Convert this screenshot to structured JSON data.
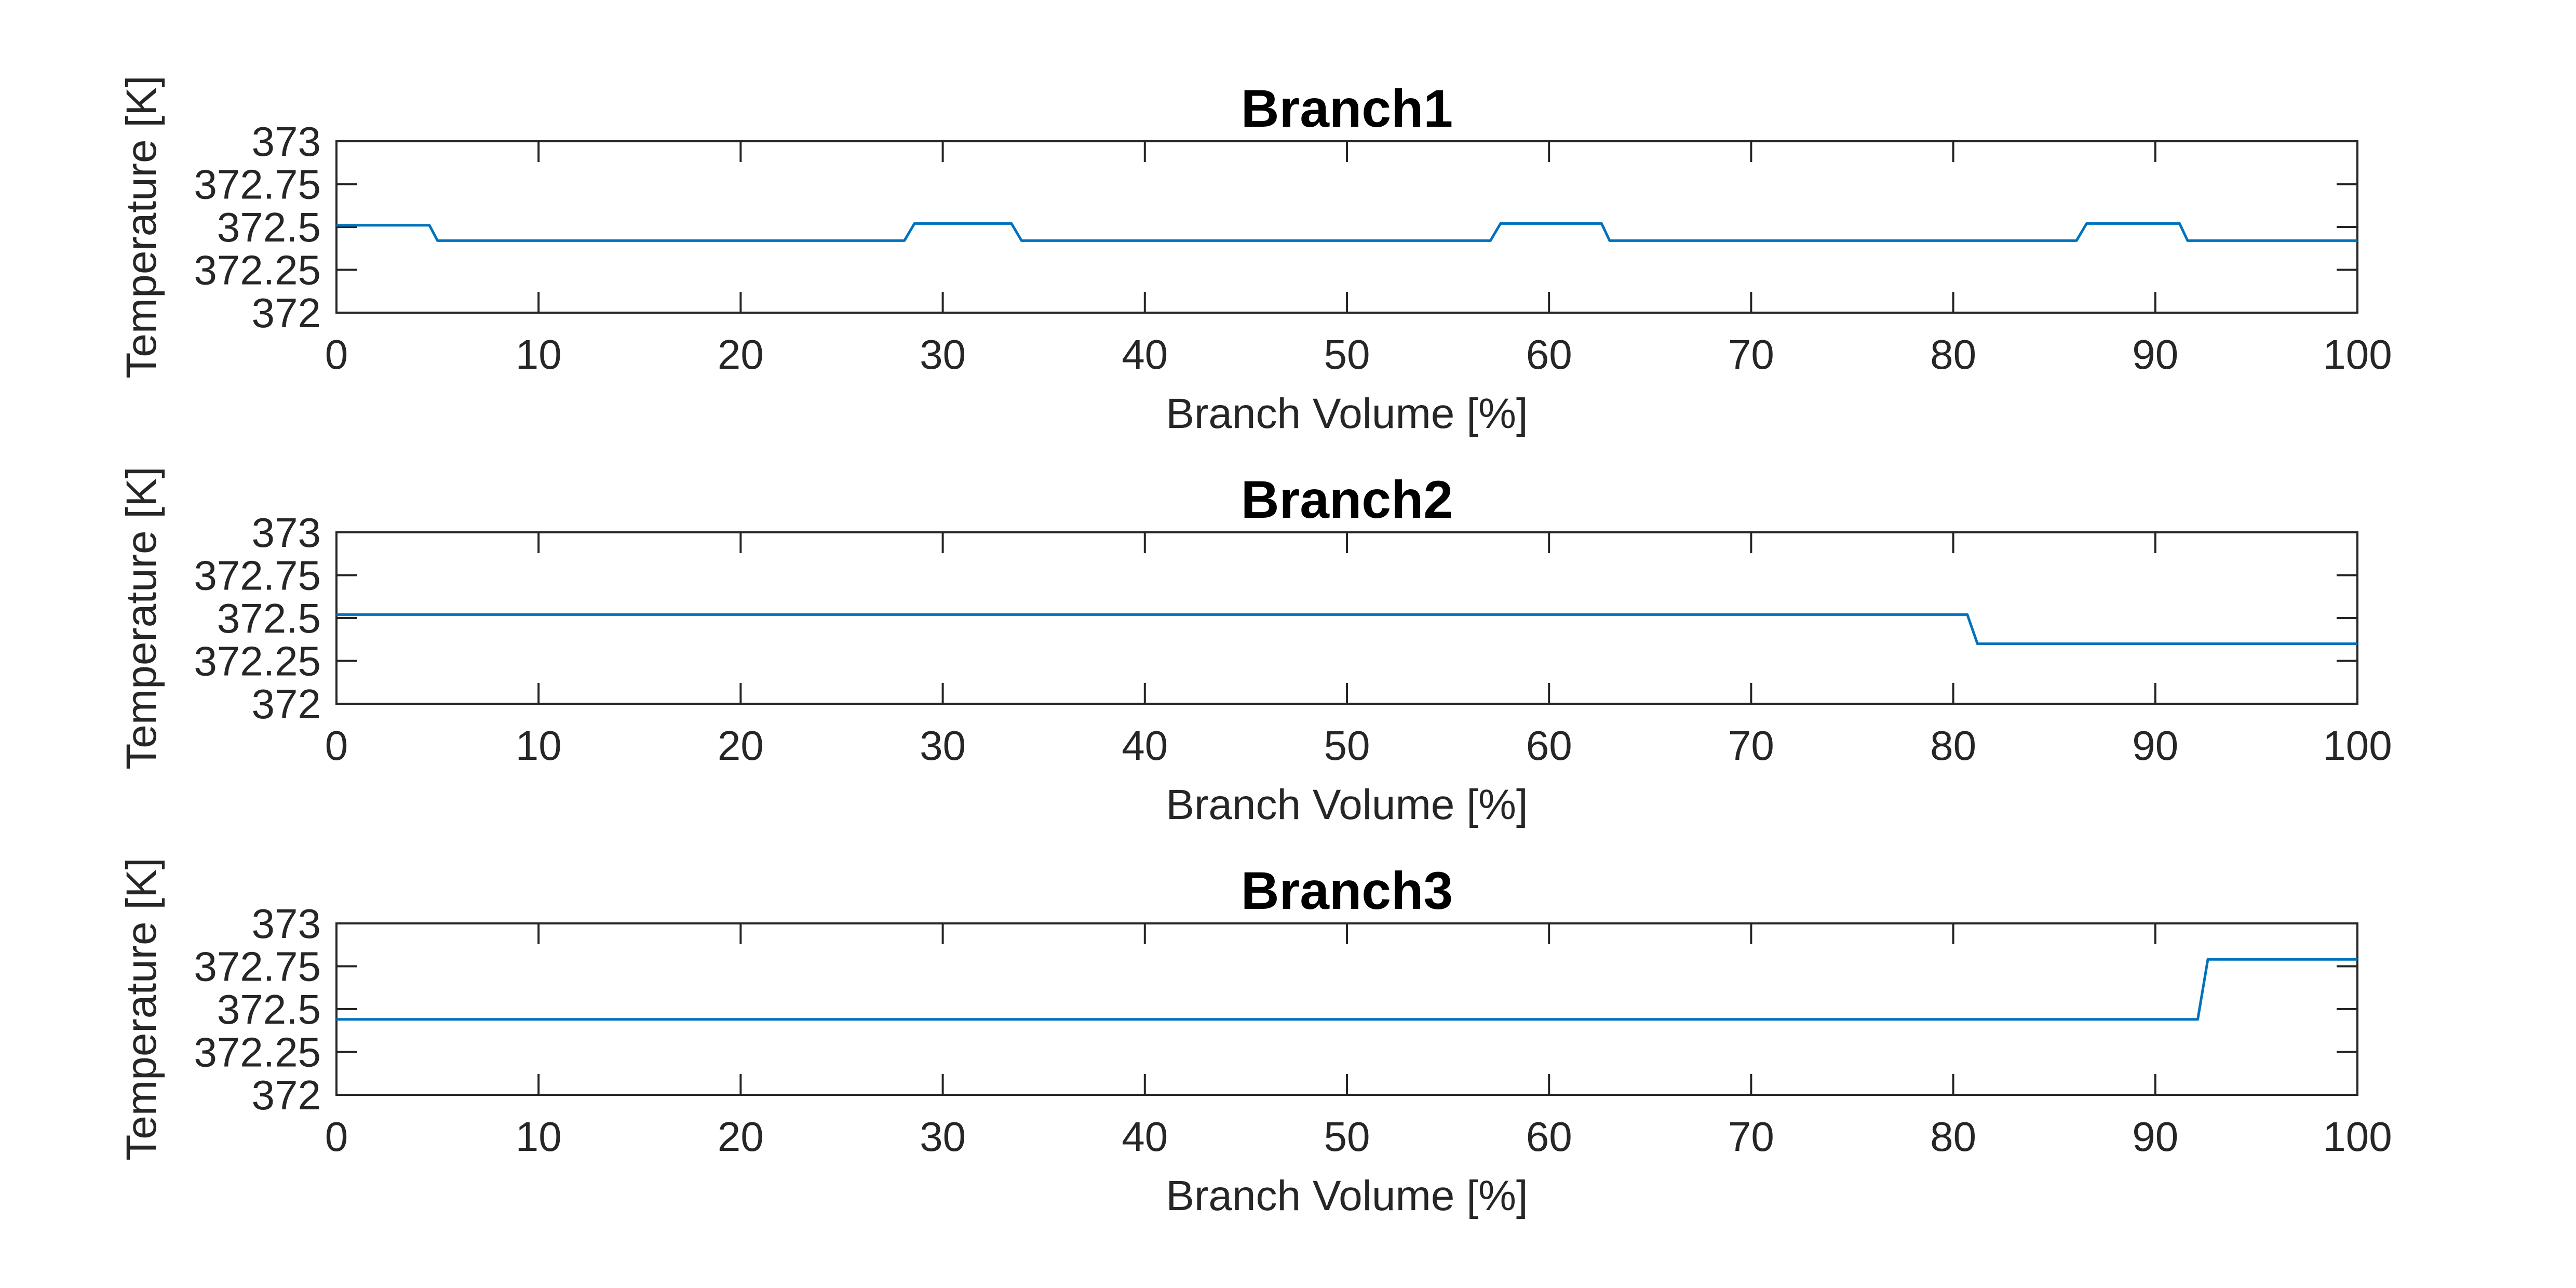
{
  "chart_data": [
    {
      "type": "line",
      "title": "Branch1",
      "xlabel": "Branch Volume [%]",
      "ylabel": "Temperature [K]",
      "xlim": [
        0,
        100
      ],
      "ylim": [
        372,
        373
      ],
      "x_ticks": [
        "0",
        "10",
        "20",
        "30",
        "40",
        "50",
        "60",
        "70",
        "80",
        "90",
        "100"
      ],
      "y_ticks": [
        "372",
        "372.25",
        "372.5",
        "372.75",
        "373"
      ],
      "grid": false,
      "series": [
        {
          "color": "#0072BD",
          "points": [
            [
              0,
              372.51
            ],
            [
              4.6,
              372.51
            ],
            [
              5.0,
              372.42
            ],
            [
              28.1,
              372.42
            ],
            [
              28.6,
              372.52
            ],
            [
              33.4,
              372.52
            ],
            [
              33.9,
              372.42
            ],
            [
              57.1,
              372.42
            ],
            [
              57.6,
              372.52
            ],
            [
              62.6,
              372.52
            ],
            [
              63.0,
              372.42
            ],
            [
              86.1,
              372.42
            ],
            [
              86.6,
              372.52
            ],
            [
              91.2,
              372.52
            ],
            [
              91.6,
              372.42
            ],
            [
              100,
              372.42
            ]
          ]
        }
      ]
    },
    {
      "type": "line",
      "title": "Branch2",
      "xlabel": "Branch Volume [%]",
      "ylabel": "Temperature [K]",
      "xlim": [
        0,
        100
      ],
      "ylim": [
        372,
        373
      ],
      "x_ticks": [
        "0",
        "10",
        "20",
        "30",
        "40",
        "50",
        "60",
        "70",
        "80",
        "90",
        "100"
      ],
      "y_ticks": [
        "372",
        "372.25",
        "372.5",
        "372.75",
        "373"
      ],
      "grid": false,
      "series": [
        {
          "color": "#0072BD",
          "points": [
            [
              0,
              372.52
            ],
            [
              80.7,
              372.52
            ],
            [
              81.2,
              372.35
            ],
            [
              100,
              372.35
            ]
          ]
        }
      ]
    },
    {
      "type": "line",
      "title": "Branch3",
      "xlabel": "Branch Volume [%]",
      "ylabel": "Temperature [K]",
      "xlim": [
        0,
        100
      ],
      "ylim": [
        372,
        373
      ],
      "x_ticks": [
        "0",
        "10",
        "20",
        "30",
        "40",
        "50",
        "60",
        "70",
        "80",
        "90",
        "100"
      ],
      "y_ticks": [
        "372",
        "372.25",
        "372.5",
        "372.75",
        "373"
      ],
      "grid": false,
      "series": [
        {
          "color": "#0072BD",
          "points": [
            [
              0,
              372.44
            ],
            [
              92.1,
              372.44
            ],
            [
              92.6,
              372.79
            ],
            [
              100,
              372.79
            ]
          ]
        }
      ]
    }
  ]
}
